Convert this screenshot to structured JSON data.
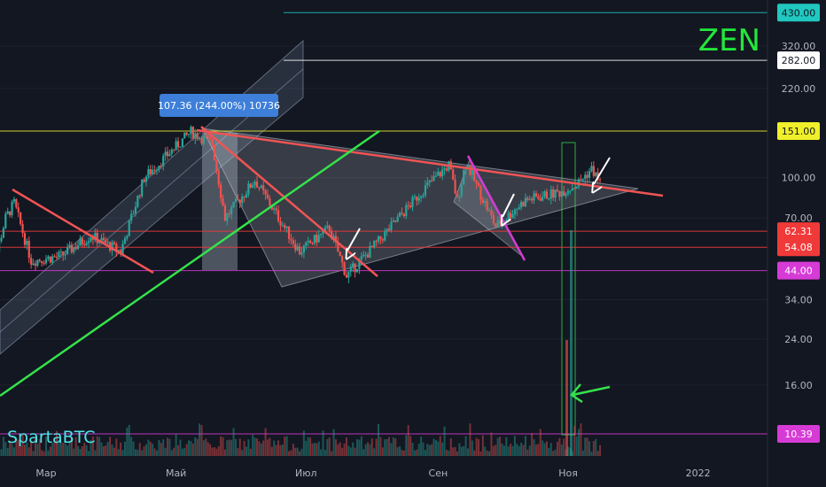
{
  "colors": {
    "background": "#131722",
    "candle_up": "#26a69a",
    "candle_down": "#ef5350",
    "trend_red": "#f05454",
    "trend_green": "#34e34a",
    "magenta": "#d63bd6",
    "yellow": "#e5e54a",
    "teal": "#20c8c0",
    "ticker": "#22e83a",
    "author": "#4ee3e8"
  },
  "chart_data": {
    "type": "candlestick",
    "ticker": "ZEN",
    "author": "SpartaBTC",
    "y_scale": "log",
    "y_ticks": [
      "320.00",
      "220.00",
      "100.00",
      "70.00",
      "34.00",
      "24.00",
      "16.00",
      "10.39"
    ],
    "x_ticks": [
      "Мар",
      "Май",
      "Июл",
      "Сен",
      "Ноя",
      "2022"
    ],
    "price_levels": [
      {
        "label": "430.00",
        "value": 430.0,
        "color": "#20c8c0",
        "text_color": "#131722"
      },
      {
        "label": "282.00",
        "value": 282.0,
        "color": "#ffffff",
        "text_color": "#131722"
      },
      {
        "label": "151.00",
        "value": 151.0,
        "color": "#f0f02a",
        "text_color": "#131722"
      },
      {
        "label": "62.31",
        "value": 62.31,
        "color": "#f03a3a",
        "text_color": "#ffffff"
      },
      {
        "label": "54.08",
        "value": 54.08,
        "color": "#f03a3a",
        "text_color": "#ffffff"
      },
      {
        "label": "44.00",
        "value": 44.0,
        "color": "#d63bd6",
        "text_color": "#ffffff"
      },
      {
        "label": "10.39",
        "value": 10.39,
        "color": "#d63bd6",
        "text_color": "#ffffff"
      }
    ],
    "measure_label": "107.36 (244.00%) 10736",
    "price_path": [
      {
        "date": "2021-02-01",
        "price": 36
      },
      {
        "date": "2021-02-10",
        "price": 70
      },
      {
        "date": "2021-02-14",
        "price": 80
      },
      {
        "date": "2021-02-22",
        "price": 48
      },
      {
        "date": "2021-03-08",
        "price": 50
      },
      {
        "date": "2021-03-22",
        "price": 60
      },
      {
        "date": "2021-04-05",
        "price": 52
      },
      {
        "date": "2021-04-16",
        "price": 100
      },
      {
        "date": "2021-05-08",
        "price": 150
      },
      {
        "date": "2021-05-18",
        "price": 135
      },
      {
        "date": "2021-05-24",
        "price": 70
      },
      {
        "date": "2021-06-07",
        "price": 98
      },
      {
        "date": "2021-06-28",
        "price": 52
      },
      {
        "date": "2021-07-12",
        "price": 64
      },
      {
        "date": "2021-07-20",
        "price": 42
      },
      {
        "date": "2021-08-04",
        "price": 57
      },
      {
        "date": "2021-08-25",
        "price": 90
      },
      {
        "date": "2021-09-06",
        "price": 112
      },
      {
        "date": "2021-09-10",
        "price": 82
      },
      {
        "date": "2021-09-14",
        "price": 115
      },
      {
        "date": "2021-09-28",
        "price": 65
      },
      {
        "date": "2021-10-12",
        "price": 82
      },
      {
        "date": "2021-10-28",
        "price": 88
      },
      {
        "date": "2021-11-05",
        "price": 94
      },
      {
        "date": "2021-11-12",
        "price": 108
      },
      {
        "date": "2021-11-16",
        "price": 96
      }
    ]
  }
}
